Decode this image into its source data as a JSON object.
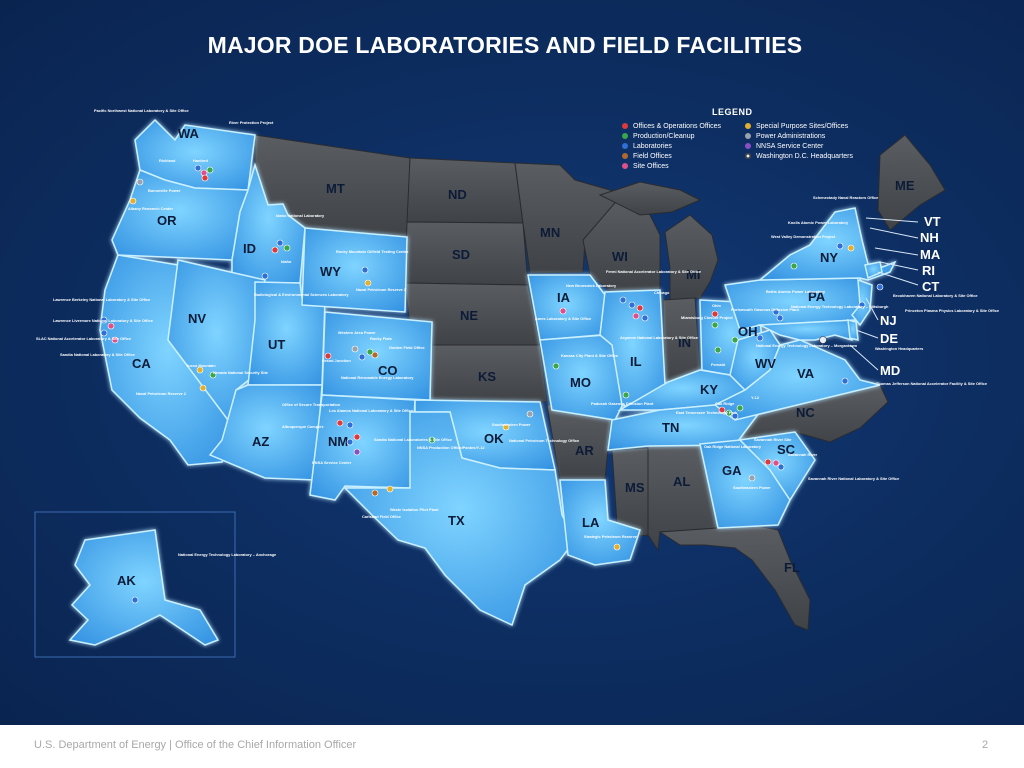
{
  "title": "MAJOR DOE LABORATORIES AND FIELD FACILITIES",
  "legend": {
    "title": "LEGEND",
    "items": [
      {
        "label": "Offices & Operations Offices",
        "color": "#e0393b"
      },
      {
        "label": "Production/Cleanup",
        "color": "#3aa64a"
      },
      {
        "label": "Laboratories",
        "color": "#2f6fd6"
      },
      {
        "label": "Field Offices",
        "color": "#b06a2d"
      },
      {
        "label": "Site Offices",
        "color": "#e04f8a"
      },
      {
        "label": "Special Purpose Sites/Offices",
        "color": "#e3b02d"
      },
      {
        "label": "Power Administrations",
        "color": "#9aa3ad"
      },
      {
        "label": "NNSA Service Center",
        "color": "#8a4fc6"
      },
      {
        "label": "Washington D.C. Headquarters",
        "color": "#e8eef5"
      }
    ]
  },
  "states": {
    "WA": "WA",
    "OR": "OR",
    "CA": "CA",
    "ID": "ID",
    "NV": "NV",
    "MT": "MT",
    "WY": "WY",
    "UT": "UT",
    "AZ": "AZ",
    "CO": "CO",
    "NM": "NM",
    "ND": "ND",
    "SD": "SD",
    "NE": "NE",
    "KS": "KS",
    "OK": "OK",
    "TX": "TX",
    "MN": "MN",
    "IA": "IA",
    "MO": "MO",
    "AR": "AR",
    "LA": "LA",
    "WI": "WI",
    "IL": "IL",
    "MI": "MI",
    "IN": "IN",
    "OH": "OH",
    "KY": "KY",
    "TN": "TN",
    "MS": "MS",
    "AL": "AL",
    "GA": "GA",
    "FL": "FL",
    "SC": "SC",
    "NC": "NC",
    "VA": "VA",
    "WV": "WV",
    "PA": "PA",
    "NY": "NY",
    "ME": "ME",
    "AK": "AK",
    "VT": "VT",
    "NH": "NH",
    "MA": "MA",
    "RI": "RI",
    "CT": "CT",
    "NJ": "NJ",
    "DE": "DE",
    "MD": "MD"
  },
  "facilities": {
    "pnnl": "Pacific Northwest National Laboratory & Site Office",
    "river_protection": "River Protection Project",
    "richland": "Richland",
    "hanford": "Hanford",
    "bonneville": "Bonneville Power",
    "albany": "Albany Research Center",
    "inl": "Idaho National Laboratory",
    "idaho": "Idaho",
    "rmotc": "Rocky Mountain Oilfield Testing Center",
    "npr3": "Naval Petroleum Reserve 3",
    "lbnl": "Lawrence Berkeley National Laboratory & Site Office",
    "llnl": "Lawrence Livermore National Laboratory & Site Office",
    "slac": "SLAC National Accelerator Laboratory & Site Office",
    "sandia_ca": "Sandia National Laboratory & Site Office",
    "resl": "Radiological & Environmental Sciences Laboratory",
    "western_area": "Western Area Power",
    "rocky_flats": "Rocky Flats",
    "golden": "Golden Field Office",
    "grand_junction": "Grand Junction",
    "nrel": "National Renewable Energy Laboratory",
    "yucca": "Yucca Mountain",
    "nnss": "Nevada National Security Site",
    "npr2": "Naval Petroleum Reserve 2",
    "ost": "Office of Secure Transportation",
    "lanl": "Los Alamos National Laboratory & Site Office",
    "albuquerque": "Albuquerque Complex",
    "sandia_nm": "Sandia National Laboratories & Site Office",
    "nnsa_sc": "NNSA Service Center",
    "nnsa_pantex": "NNSA Production Office/Pantex/Y-12",
    "swpa": "Southwestern Power",
    "nptec": "National Petroleum Technology Office",
    "carlsbad": "Carlsbad Field Office",
    "wipp": "Waste Isolation Pilot Plant",
    "spr": "Strategic Petroleum Reserve",
    "fermi": "Fermi National Accelerator Laboratory & Site Office",
    "new_brunswick": "New Brunswick Laboratory",
    "chicago": "Chicago",
    "ames": "Ames Laboratory & Site Office",
    "argonne": "Argonne National Laboratory & Site Office",
    "kc_plant": "Kansas City Plant & Site Office",
    "paducah": "Paducah Gaseous Diffusion Plant",
    "ohio": "Ohio",
    "portsmouth": "Portsmouth Gaseous Diffusion Plant",
    "miamisburg": "Miamisburg Closure Project",
    "netl_morgantown": "National Energy Technology Laboratory – Morgantown",
    "fernald": "Fernald",
    "oak_ridge": "Oak Ridge",
    "y12": "Y-12",
    "ettp": "East Tennessee Technology Park",
    "ornl": "Oak Ridge National Laboratory",
    "savannah": "Savannah River Site",
    "savannah_river": "Savannah River",
    "srnl": "Savannah River National Laboratory & Site Office",
    "sepa": "Southeastern Power",
    "schenectady": "Schenectady Naval Reactors Office",
    "knolls": "Knolls Atomic Power Laboratory",
    "west_valley": "West Valley Demonstration Project",
    "bettis": "Bettis Atomic Power Laboratory",
    "netl_pittsburgh": "National Energy Technology Laboratory – Pittsburgh",
    "bnl": "Brookhaven National Laboratory & Site Office",
    "pppl": "Princeton Plasma Physics Laboratory & Site Office",
    "dc_hq": "Washington Headquarters",
    "jlab": "Thomas Jefferson National Accelerator Facility & Site Office",
    "netl_ak": "National Energy Technology Laboratory – Anchorage"
  },
  "footer": {
    "text": "U.S. Department of Energy  |  Office of the Chief Information Officer",
    "page": "2"
  }
}
